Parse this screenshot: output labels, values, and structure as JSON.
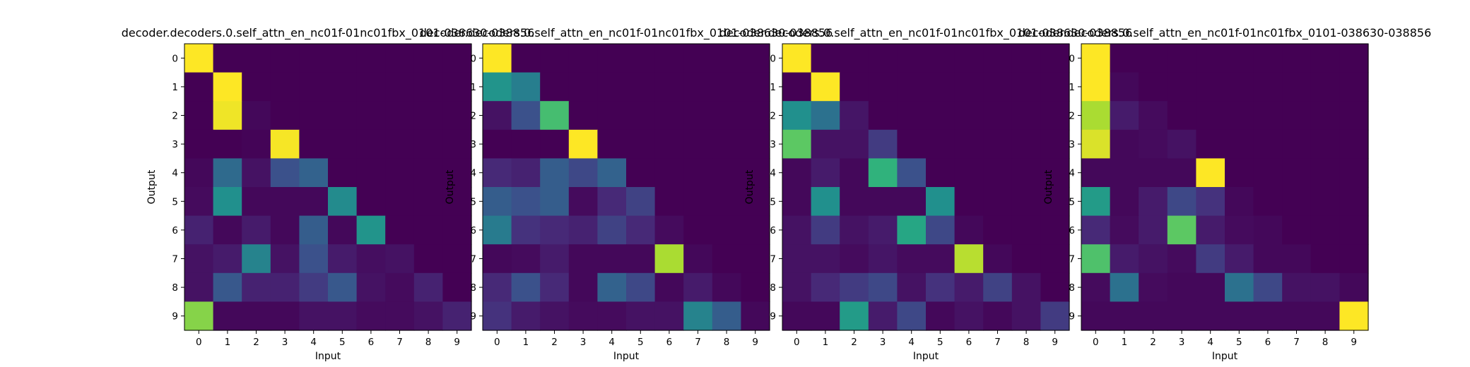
{
  "chart_data": [
    {
      "type": "heatmap",
      "title": "decoder.decoders.0.self_attn_en_nc01f-01nc01fbx_0101-038630-038856",
      "xlabel": "Input",
      "ylabel": "Output",
      "x_ticks": [
        "0",
        "1",
        "2",
        "3",
        "4",
        "5",
        "6",
        "7",
        "8",
        "9"
      ],
      "y_ticks": [
        "0",
        "1",
        "2",
        "3",
        "4",
        "5",
        "6",
        "7",
        "8",
        "9"
      ],
      "value_range": [
        0,
        1
      ],
      "colormap": "viridis",
      "values": [
        [
          1.0,
          0,
          0,
          0,
          0,
          0,
          0,
          0,
          0,
          0
        ],
        [
          0,
          1.0,
          0,
          0,
          0,
          0,
          0,
          0,
          0,
          0
        ],
        [
          0,
          0.98,
          0.02,
          0,
          0,
          0,
          0,
          0,
          0,
          0
        ],
        [
          0,
          0,
          0.01,
          0.99,
          0,
          0,
          0,
          0,
          0,
          0
        ],
        [
          0.02,
          0.35,
          0.05,
          0.25,
          0.32,
          0,
          0,
          0,
          0,
          0
        ],
        [
          0.03,
          0.5,
          0.02,
          0.02,
          0.02,
          0.48,
          0,
          0,
          0,
          0
        ],
        [
          0.1,
          0.02,
          0.08,
          0.02,
          0.3,
          0.02,
          0.52,
          0,
          0,
          0
        ],
        [
          0.05,
          0.08,
          0.45,
          0.05,
          0.25,
          0.08,
          0.04,
          0.05,
          0,
          0
        ],
        [
          0.05,
          0.28,
          0.1,
          0.1,
          0.18,
          0.28,
          0.05,
          0.03,
          0.1,
          0
        ],
        [
          0.82,
          0.02,
          0.02,
          0.02,
          0.05,
          0.05,
          0.03,
          0.03,
          0.05,
          0.1
        ]
      ]
    },
    {
      "type": "heatmap",
      "title": "decoder.decoders.0.self_attn_en_nc01f-01nc01fbx_0101-038630-038856",
      "xlabel": "Input",
      "ylabel": "Output",
      "x_ticks": [
        "0",
        "1",
        "2",
        "3",
        "4",
        "5",
        "6",
        "7",
        "8",
        "9"
      ],
      "y_ticks": [
        "0",
        "1",
        "2",
        "3",
        "4",
        "5",
        "6",
        "7",
        "8",
        "9"
      ],
      "value_range": [
        0,
        1
      ],
      "colormap": "viridis",
      "values": [
        [
          1.0,
          0,
          0,
          0,
          0,
          0,
          0,
          0,
          0,
          0
        ],
        [
          0.52,
          0.43,
          0,
          0,
          0,
          0,
          0,
          0,
          0,
          0
        ],
        [
          0.05,
          0.25,
          0.7,
          0,
          0,
          0,
          0,
          0,
          0,
          0
        ],
        [
          0,
          0,
          0,
          1.0,
          0,
          0,
          0,
          0,
          0,
          0
        ],
        [
          0.12,
          0.1,
          0.3,
          0.22,
          0.32,
          0,
          0,
          0,
          0,
          0
        ],
        [
          0.3,
          0.25,
          0.3,
          0.03,
          0.12,
          0.2,
          0,
          0,
          0,
          0
        ],
        [
          0.42,
          0.15,
          0.12,
          0.1,
          0.2,
          0.12,
          0.03,
          0,
          0,
          0
        ],
        [
          0.02,
          0.03,
          0.08,
          0.02,
          0.02,
          0.02,
          0.88,
          0.02,
          0,
          0
        ],
        [
          0.12,
          0.25,
          0.12,
          0.02,
          0.32,
          0.22,
          0.02,
          0.08,
          0.02,
          0
        ],
        [
          0.15,
          0.08,
          0.05,
          0.03,
          0.03,
          0.05,
          0.05,
          0.45,
          0.3,
          0.02
        ]
      ]
    },
    {
      "type": "heatmap",
      "title": "decoder.decoders.0.self_attn_en_nc01f-01nc01fbx_0101-038630-038856",
      "xlabel": "Input",
      "ylabel": "Output",
      "x_ticks": [
        "0",
        "1",
        "2",
        "3",
        "4",
        "5",
        "6",
        "7",
        "8",
        "9"
      ],
      "y_ticks": [
        "0",
        "1",
        "2",
        "3",
        "4",
        "5",
        "6",
        "7",
        "8",
        "9"
      ],
      "value_range": [
        0,
        1
      ],
      "colormap": "viridis",
      "values": [
        [
          1.0,
          0,
          0,
          0,
          0,
          0,
          0,
          0,
          0,
          0
        ],
        [
          0,
          1.0,
          0,
          0,
          0,
          0,
          0,
          0,
          0,
          0
        ],
        [
          0.5,
          0.38,
          0.06,
          0,
          0,
          0,
          0,
          0,
          0,
          0
        ],
        [
          0.75,
          0.05,
          0.05,
          0.18,
          0,
          0,
          0,
          0,
          0,
          0
        ],
        [
          0.02,
          0.08,
          0.02,
          0.65,
          0.25,
          0,
          0,
          0,
          0,
          0
        ],
        [
          0.02,
          0.5,
          0.02,
          0.02,
          0.02,
          0.5,
          0,
          0,
          0,
          0
        ],
        [
          0.05,
          0.18,
          0.05,
          0.08,
          0.6,
          0.22,
          0.02,
          0,
          0,
          0
        ],
        [
          0.05,
          0.05,
          0.03,
          0.06,
          0.03,
          0.03,
          0.9,
          0.02,
          0,
          0
        ],
        [
          0.05,
          0.12,
          0.18,
          0.22,
          0.05,
          0.15,
          0.08,
          0.2,
          0.05,
          0
        ],
        [
          0.02,
          0.02,
          0.55,
          0.08,
          0.22,
          0.02,
          0.05,
          0.02,
          0.05,
          0.18
        ]
      ]
    },
    {
      "type": "heatmap",
      "title": "decoder.decoders.0.self_attn_en_nc01f-01nc01fbx_0101-038630-038856",
      "xlabel": "Input",
      "ylabel": "Output",
      "x_ticks": [
        "0",
        "1",
        "2",
        "3",
        "4",
        "5",
        "6",
        "7",
        "8",
        "9"
      ],
      "y_ticks": [
        "0",
        "1",
        "2",
        "3",
        "4",
        "5",
        "6",
        "7",
        "8",
        "9"
      ],
      "value_range": [
        0,
        1
      ],
      "colormap": "viridis",
      "values": [
        [
          1.0,
          0,
          0,
          0,
          0,
          0,
          0,
          0,
          0,
          0
        ],
        [
          1.0,
          0.02,
          0,
          0,
          0,
          0,
          0,
          0,
          0,
          0
        ],
        [
          0.88,
          0.08,
          0.03,
          0,
          0,
          0,
          0,
          0,
          0,
          0
        ],
        [
          0.95,
          0.02,
          0.03,
          0.05,
          0,
          0,
          0,
          0,
          0,
          0
        ],
        [
          0.02,
          0.02,
          0.02,
          0.02,
          1.0,
          0,
          0,
          0,
          0,
          0
        ],
        [
          0.55,
          0.02,
          0.08,
          0.22,
          0.15,
          0.02,
          0,
          0,
          0,
          0
        ],
        [
          0.12,
          0.03,
          0.08,
          0.75,
          0.08,
          0.03,
          0.02,
          0,
          0,
          0
        ],
        [
          0.72,
          0.08,
          0.05,
          0.03,
          0.18,
          0.08,
          0.02,
          0.02,
          0,
          0
        ],
        [
          0.03,
          0.38,
          0.03,
          0.02,
          0.02,
          0.38,
          0.22,
          0.05,
          0.05,
          0.02
        ],
        [
          0.02,
          0.02,
          0.02,
          0.02,
          0.02,
          0.02,
          0.02,
          0.02,
          0.02,
          1.0
        ]
      ]
    }
  ]
}
